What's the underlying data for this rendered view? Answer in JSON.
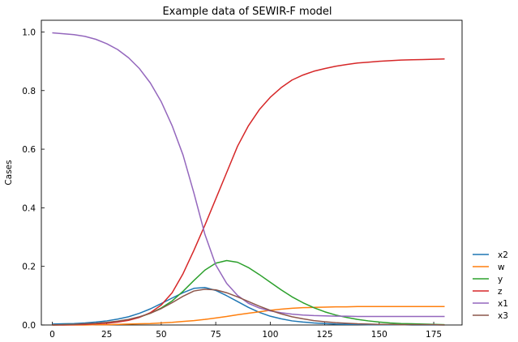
{
  "chart_data": {
    "type": "line",
    "title": "Example data of SEWIR-F model",
    "xlabel": "",
    "ylabel": "Cases",
    "xlim": [
      -5,
      188
    ],
    "ylim": [
      0,
      1.04
    ],
    "x_ticks": [
      0,
      25,
      50,
      75,
      100,
      125,
      150,
      175
    ],
    "y_ticks": [
      0.0,
      0.2,
      0.4,
      0.6,
      0.8,
      1.0
    ],
    "x_tick_labels": [
      "0",
      "25",
      "50",
      "75",
      "100",
      "125",
      "150",
      "175"
    ],
    "y_tick_labels": [
      "0.0",
      "0.2",
      "0.4",
      "0.6",
      "0.8",
      "1.0"
    ],
    "grid": false,
    "legend_position": "right-bottom, outside plot",
    "x": [
      0,
      5,
      10,
      15,
      20,
      25,
      30,
      35,
      40,
      45,
      50,
      55,
      60,
      65,
      70,
      75,
      80,
      85,
      90,
      95,
      100,
      105,
      110,
      115,
      120,
      125,
      130,
      135,
      140,
      145,
      150,
      155,
      160,
      165,
      170,
      175,
      180
    ],
    "series": [
      {
        "name": "x2",
        "color": "#1f77b4",
        "values": [
          0.003,
          0.004,
          0.005,
          0.007,
          0.01,
          0.014,
          0.02,
          0.028,
          0.04,
          0.055,
          0.073,
          0.092,
          0.11,
          0.125,
          0.128,
          0.118,
          0.1,
          0.08,
          0.06,
          0.043,
          0.03,
          0.021,
          0.014,
          0.01,
          0.007,
          0.005,
          0.003,
          0.002,
          0.002,
          0.001,
          0.001,
          0.001,
          0.001,
          0.0,
          0.0,
          0.0,
          0.0
        ]
      },
      {
        "name": "w",
        "color": "#ff7f0e",
        "values": [
          0.0,
          0.0,
          0.0,
          0.0,
          0.001,
          0.001,
          0.002,
          0.003,
          0.004,
          0.005,
          0.007,
          0.009,
          0.012,
          0.015,
          0.019,
          0.024,
          0.029,
          0.035,
          0.04,
          0.045,
          0.05,
          0.054,
          0.057,
          0.059,
          0.06,
          0.061,
          0.062,
          0.062,
          0.063,
          0.063,
          0.063,
          0.063,
          0.063,
          0.063,
          0.063,
          0.063,
          0.063
        ]
      },
      {
        "name": "y",
        "color": "#2ca02c",
        "values": [
          0.0,
          0.001,
          0.002,
          0.003,
          0.005,
          0.008,
          0.012,
          0.018,
          0.027,
          0.04,
          0.058,
          0.082,
          0.115,
          0.152,
          0.187,
          0.211,
          0.22,
          0.214,
          0.196,
          0.172,
          0.146,
          0.12,
          0.096,
          0.076,
          0.059,
          0.045,
          0.034,
          0.026,
          0.019,
          0.014,
          0.01,
          0.007,
          0.005,
          0.004,
          0.003,
          0.002,
          0.001
        ]
      },
      {
        "name": "z",
        "color": "#d62728",
        "values": [
          0.0,
          0.0,
          0.001,
          0.002,
          0.004,
          0.006,
          0.01,
          0.016,
          0.026,
          0.042,
          0.068,
          0.11,
          0.175,
          0.255,
          0.34,
          0.43,
          0.52,
          0.61,
          0.68,
          0.735,
          0.777,
          0.81,
          0.836,
          0.853,
          0.866,
          0.875,
          0.883,
          0.889,
          0.894,
          0.897,
          0.9,
          0.902,
          0.904,
          0.905,
          0.906,
          0.907,
          0.908
        ]
      },
      {
        "name": "x1",
        "color": "#9467bd",
        "values": [
          0.997,
          0.994,
          0.991,
          0.985,
          0.975,
          0.96,
          0.94,
          0.912,
          0.875,
          0.826,
          0.762,
          0.68,
          0.58,
          0.45,
          0.31,
          0.205,
          0.142,
          0.101,
          0.074,
          0.058,
          0.048,
          0.042,
          0.037,
          0.034,
          0.032,
          0.031,
          0.03,
          0.03,
          0.029,
          0.029,
          0.029,
          0.029,
          0.029,
          0.029,
          0.029,
          0.029,
          0.029
        ]
      },
      {
        "name": "x3",
        "color": "#8c564b",
        "values": [
          0.0,
          0.001,
          0.002,
          0.004,
          0.006,
          0.009,
          0.013,
          0.019,
          0.028,
          0.04,
          0.056,
          0.076,
          0.098,
          0.116,
          0.122,
          0.12,
          0.11,
          0.096,
          0.08,
          0.064,
          0.05,
          0.038,
          0.028,
          0.021,
          0.015,
          0.011,
          0.008,
          0.006,
          0.004,
          0.003,
          0.002,
          0.002,
          0.001,
          0.001,
          0.001,
          0.001,
          0.0
        ]
      }
    ]
  }
}
